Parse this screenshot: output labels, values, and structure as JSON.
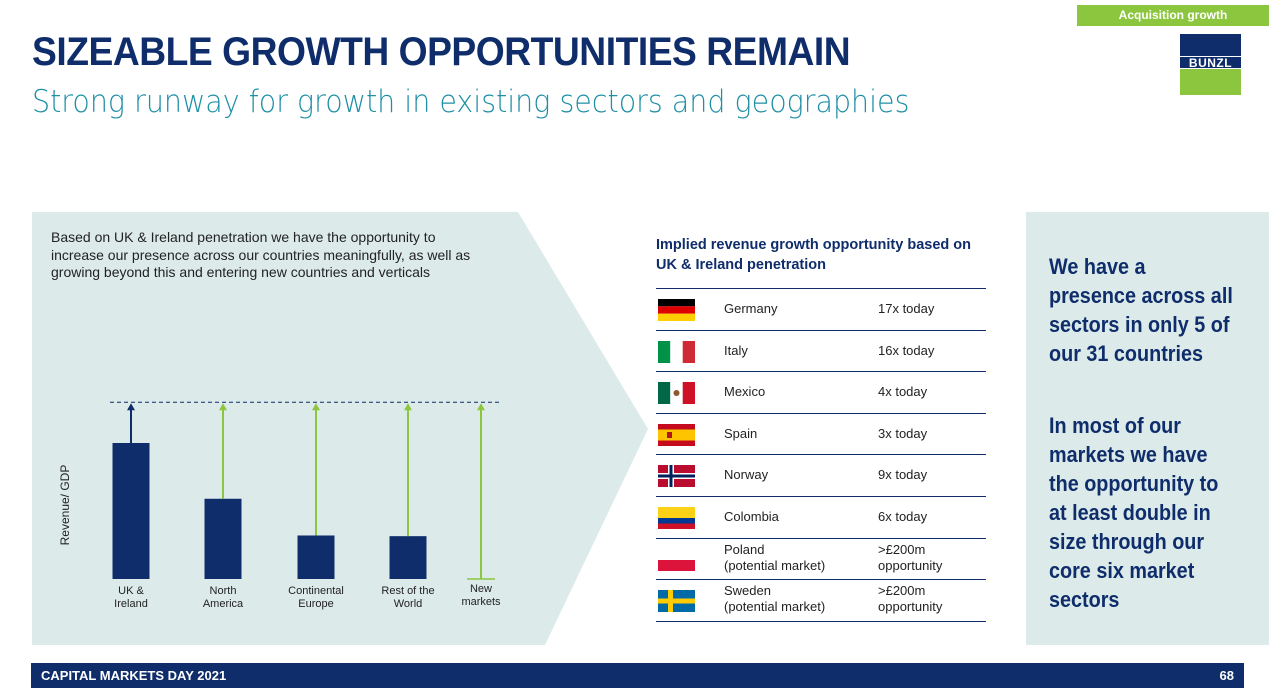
{
  "tag": "Acquisition growth",
  "logo_text": "BUNZL",
  "header": {
    "title": "SIZEABLE GROWTH OPPORTUNITIES REMAIN",
    "subtitle": "Strong runway for growth in existing sectors and geographies"
  },
  "left_panel": {
    "intro": "Based on UK & Ireland penetration we have the opportunity to increase our presence across our countries meaningfully, as well as growing beyond this and entering new countries and verticals"
  },
  "chart_data": {
    "type": "bar",
    "title": "",
    "xlabel": "",
    "ylabel": "Revenue/ GDP",
    "categories": [
      "UK & Ireland",
      "North America",
      "Continental Europe",
      "Rest of the World",
      "New markets"
    ],
    "category_lines": [
      [
        "UK &",
        "Ireland"
      ],
      [
        "North",
        "America"
      ],
      [
        "Continental",
        "Europe"
      ],
      [
        "Rest of the",
        "World"
      ],
      [
        "New",
        "markets"
      ]
    ],
    "values": [
      100,
      59,
      32,
      31.5,
      0
    ],
    "target": 130,
    "ylim": [
      0,
      135
    ],
    "colors": {
      "bar": "#0f2d6b",
      "arrow_lead": "#0f2d6b",
      "arrow_growth": "#8cc63f",
      "target_line": "#0f2d6b"
    },
    "grid": false
  },
  "table": {
    "title": "Implied revenue growth opportunity based on UK & Ireland penetration",
    "rows": [
      {
        "flag": "germany-flag",
        "country": "Germany",
        "country2": "",
        "value": "17x today",
        "value2": ""
      },
      {
        "flag": "italy-flag",
        "country": "Italy",
        "country2": "",
        "value": "16x today",
        "value2": ""
      },
      {
        "flag": "mexico-flag",
        "country": "Mexico",
        "country2": "",
        "value": "4x today",
        "value2": ""
      },
      {
        "flag": "spain-flag",
        "country": "Spain",
        "country2": "",
        "value": "3x today",
        "value2": ""
      },
      {
        "flag": "norway-flag",
        "country": "Norway",
        "country2": "",
        "value": "9x today",
        "value2": ""
      },
      {
        "flag": "colombia-flag",
        "country": "Colombia",
        "country2": "",
        "value": "6x today",
        "value2": ""
      },
      {
        "flag": "poland-flag",
        "country": "Poland",
        "country2": "(potential market)",
        "value": ">£200m",
        "value2": "opportunity"
      },
      {
        "flag": "sweden-flag",
        "country": "Sweden",
        "country2": "(potential market)",
        "value": ">£200m",
        "value2": "opportunity"
      }
    ]
  },
  "right_panel": {
    "text1": "We have a presence across all sectors in only 5 of our 31 countries",
    "text2": "In most of our markets we have the opportunity to at least double in size through our core six market sectors"
  },
  "footer": {
    "left": "CAPITAL MARKETS DAY 2021",
    "page": "68"
  }
}
